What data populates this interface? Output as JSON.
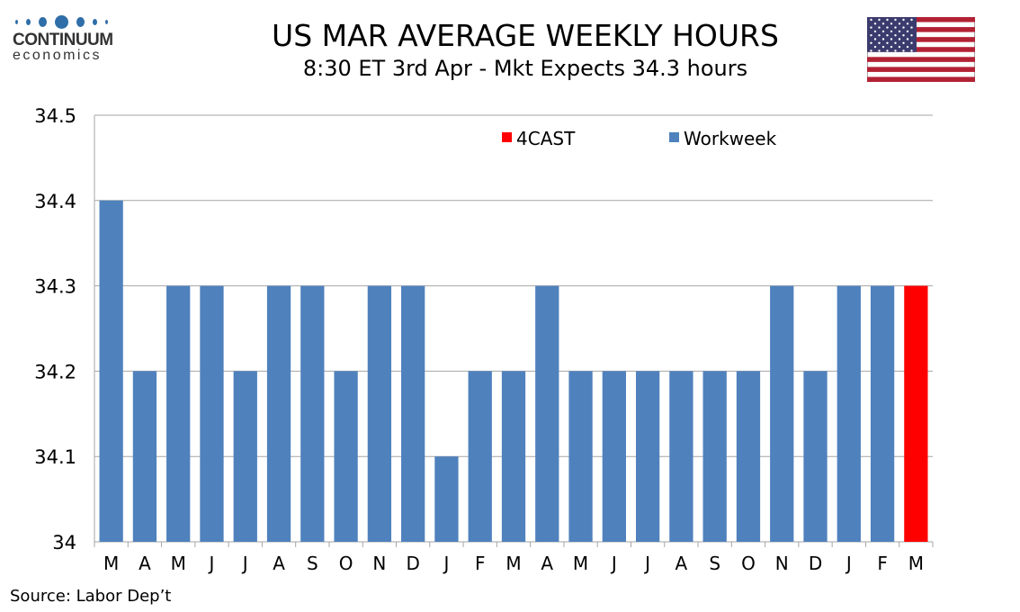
{
  "header": {
    "title": "US MAR AVERAGE WEEKLY HOURS",
    "subtitle": "8:30 ET 3rd Apr - Mkt Expects 34.3 hours"
  },
  "logo": {
    "name": "CONTINUUM",
    "sub": "economics"
  },
  "source": "Source: Labor Dep’t",
  "colors": {
    "actual": "#4f81bd",
    "forecast": "#ff0000"
  },
  "chart_data": {
    "type": "bar",
    "title": "US MAR AVERAGE WEEKLY HOURS",
    "categories": [
      "M",
      "A",
      "M",
      "J",
      "J",
      "A",
      "S",
      "O",
      "N",
      "D",
      "J",
      "F",
      "M",
      "A",
      "M",
      "J",
      "J",
      "A",
      "S",
      "O",
      "N",
      "D",
      "J",
      "F",
      "M"
    ],
    "values": [
      34.4,
      34.2,
      34.3,
      34.3,
      34.2,
      34.3,
      34.3,
      34.2,
      34.3,
      34.3,
      34.1,
      34.2,
      34.2,
      34.3,
      34.2,
      34.2,
      34.2,
      34.2,
      34.2,
      34.2,
      34.3,
      34.2,
      34.3,
      34.3,
      34.3
    ],
    "series_of_bar": [
      "Workweek",
      "Workweek",
      "Workweek",
      "Workweek",
      "Workweek",
      "Workweek",
      "Workweek",
      "Workweek",
      "Workweek",
      "Workweek",
      "Workweek",
      "Workweek",
      "Workweek",
      "Workweek",
      "Workweek",
      "Workweek",
      "Workweek",
      "Workweek",
      "Workweek",
      "Workweek",
      "Workweek",
      "Workweek",
      "Workweek",
      "Workweek",
      "4CAST"
    ],
    "legend": [
      "4CAST",
      "Workweek"
    ],
    "legend_placement": "top",
    "yticks": [
      "34",
      "34.1",
      "34.2",
      "34.3",
      "34.4",
      "34.5"
    ],
    "ylim": [
      34,
      34.5
    ],
    "grid": true,
    "xlabel": "",
    "ylabel": ""
  }
}
